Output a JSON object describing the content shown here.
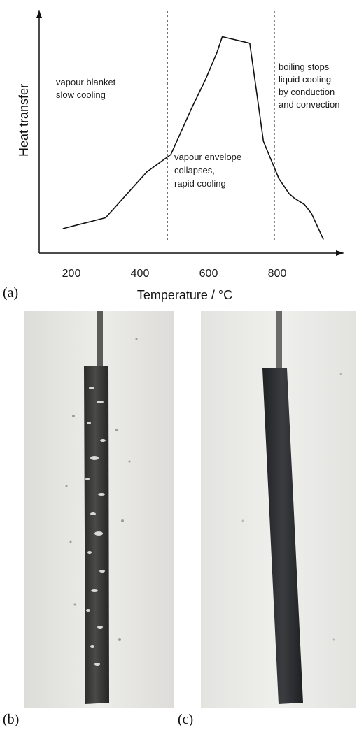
{
  "chart_data": {
    "type": "line",
    "xlabel": "Temperature / °C",
    "ylabel": "Heat transfer",
    "xlim": [
      160,
      980
    ],
    "ylim": [
      0,
      100
    ],
    "x_ticks": [
      200,
      400,
      600,
      800
    ],
    "tick_labels": [
      "200",
      "400",
      "600",
      "800"
    ],
    "x_ticks_shown": true,
    "y_ticks_shown": false,
    "grid": false,
    "series": [
      {
        "x": [
          175,
          300,
          420,
          490,
          550,
          590,
          625,
          640,
          720,
          730,
          760,
          805,
          835,
          850,
          880,
          900,
          935
        ],
        "y": [
          8,
          13,
          34,
          42,
          63,
          76,
          89,
          96,
          93,
          82,
          48,
          31,
          24,
          22,
          19,
          15,
          3
        ]
      }
    ],
    "vlines": [
      {
        "x": 480,
        "style": "dashed"
      },
      {
        "x": 792,
        "style": "dashed"
      }
    ],
    "annotations": [
      {
        "lines": [
          "vapour blanket",
          "slow cooling"
        ]
      },
      {
        "lines": [
          "vapour envelope",
          "collapses,",
          "rapid cooling"
        ]
      },
      {
        "lines": [
          "boiling stops",
          "liquid cooling",
          "by conduction",
          "and convection"
        ]
      }
    ]
  },
  "panels": {
    "a": "(a)",
    "b": "(b)",
    "c": "(c)"
  },
  "colors": {
    "line": "#111111",
    "axis": "#111111",
    "photo_background": "#e6e6e2",
    "rod_bubbles": "#3a3a38",
    "rod_quiet": "#2f3033"
  }
}
